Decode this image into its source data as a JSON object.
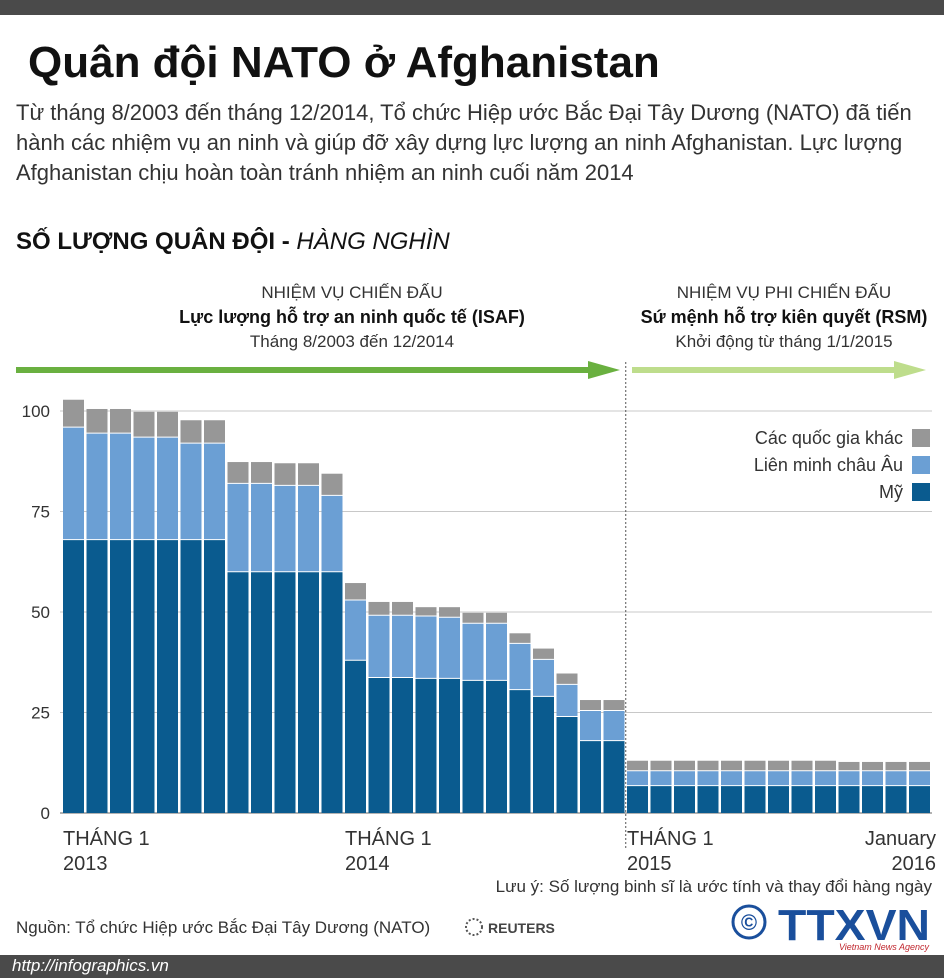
{
  "header": {
    "title": "Quân đội NATO ở Afghanistan",
    "intro": "Từ tháng 8/2003 đến tháng 12/2014, Tổ chức Hiệp ước Bắc Đại Tây Dương (NATO) đã tiến hành các nhiệm vụ an ninh và giúp đỡ xây dựng lực lượng an ninh Afghanistan. Lực lượng Afghanistan chịu hoàn toàn tránh nhiệm an ninh cuối năm 2014",
    "subtitle_bold": "SỐ LƯỢNG QUÂN ĐỘI - ",
    "subtitle_italic": "HÀNG NGHÌN"
  },
  "colors": {
    "us": "#0a5b8f",
    "eu": "#6b9fd4",
    "other": "#979797",
    "arrow_isaf": "#6ab040",
    "arrow_rsm": "#bedd8c",
    "grid": "#c8c8c8",
    "bar_separator": "#ffffff"
  },
  "phases": {
    "isaf": {
      "line1": "NHIỆM VỤ CHIẾN ĐẤU",
      "line2": "Lực lượng hỗ trợ an ninh quốc tế (ISAF)",
      "line3": "Tháng 8/2003 đến 12/2014"
    },
    "rsm": {
      "line1": "NHIỆM VỤ PHI CHIẾN ĐẤU",
      "line2": "Sứ mệnh hỗ trợ kiên quyết (RSM)",
      "line3": "Khởi động từ tháng 1/1/2015"
    }
  },
  "chart_data": {
    "type": "bar",
    "stacked": true,
    "title": "SỐ LƯỢNG QUÂN ĐỘI - HÀNG NGHÌN",
    "xlabel": "",
    "ylabel": "",
    "ylim": [
      0,
      100
    ],
    "yticks": [
      0,
      25,
      50,
      75,
      100
    ],
    "grid": true,
    "legend_position": "top-right",
    "categories": [
      "Jan 2013",
      "",
      "",
      "",
      "",
      "",
      "",
      "",
      "",
      "",
      "",
      "",
      "Jan 2014",
      "",
      "",
      "",
      "",
      "",
      "",
      "",
      "",
      "",
      "",
      "",
      "Jan 2015",
      "",
      "",
      "",
      "",
      "",
      "",
      "",
      "",
      "",
      "",
      "",
      "Jan 2016"
    ],
    "x_tick_labels": [
      {
        "index": 0,
        "line1": "THÁNG 1",
        "line2": "2013",
        "align": "left"
      },
      {
        "index": 12,
        "line1": "THÁNG 1",
        "line2": "2014",
        "align": "left"
      },
      {
        "index": 24,
        "line1": "THÁNG 1",
        "line2": "2015",
        "align": "left"
      },
      {
        "index": 36,
        "line1": "January",
        "line2": "2016",
        "align": "right"
      }
    ],
    "divider_between_index": 23.5,
    "series": [
      {
        "name": "Mỹ",
        "key": "us",
        "values": [
          68,
          68,
          68,
          68,
          68,
          68,
          68,
          60,
          60,
          60,
          60,
          60,
          38,
          33.7,
          33.7,
          33.5,
          33.5,
          33,
          33,
          30.7,
          29,
          24,
          18,
          18,
          6.8,
          6.8,
          6.8,
          6.8,
          6.8,
          6.8,
          6.8,
          6.8,
          6.8,
          6.8,
          6.8,
          6.8,
          6.8
        ]
      },
      {
        "name": "Liên minh châu Âu",
        "key": "eu",
        "values": [
          28,
          26.5,
          26.5,
          25.5,
          25.5,
          24,
          24,
          22,
          22,
          21.5,
          21.5,
          19,
          15,
          15.5,
          15.5,
          15.5,
          15.2,
          14.2,
          14.2,
          11.5,
          9.2,
          8,
          7.5,
          7.5,
          3.7,
          3.7,
          3.7,
          3.7,
          3.7,
          3.7,
          3.7,
          3.7,
          3.7,
          3.7,
          3.7,
          3.7,
          3.7
        ]
      },
      {
        "name": "Các quốc gia khác",
        "key": "other",
        "values": [
          6.8,
          6,
          6,
          6.3,
          6.3,
          5.7,
          5.7,
          5.3,
          5.3,
          5.5,
          5.5,
          5.4,
          4.2,
          3.3,
          3.3,
          2.2,
          2.5,
          2.6,
          2.6,
          2.5,
          2.7,
          2.7,
          2.6,
          2.6,
          2.5,
          2.5,
          2.5,
          2.5,
          2.5,
          2.5,
          2.5,
          2.5,
          2.5,
          2.2,
          2.2,
          2.2,
          2.2
        ]
      }
    ],
    "legend_labels": [
      "Các quốc gia khác",
      "Liên minh châu Âu",
      "Mỹ"
    ],
    "note": "Lưu ý: Số lượng binh sĩ là ước tính và thay đổi hàng ngày"
  },
  "source": "Nguồn: Tổ chức Hiệp ước Bắc Đại Tây Dương (NATO)",
  "reuters_label": "REUTERS",
  "ttxvn": {
    "copyright": "©",
    "logo": "TTXVN",
    "sub": "Vietnam News Agency"
  },
  "footer_url": "http://infographics.vn"
}
